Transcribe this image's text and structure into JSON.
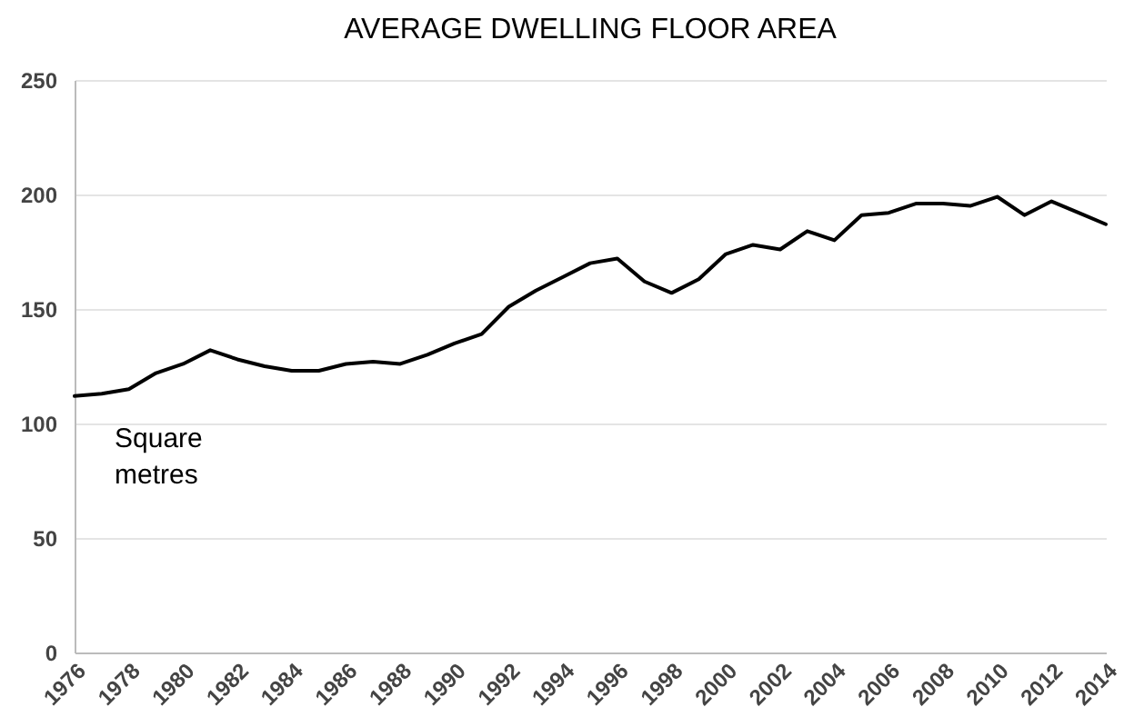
{
  "chart_data": {
    "type": "line",
    "title": "AVERAGE DWELLING FLOOR AREA",
    "ylabel": "Square metres",
    "x": [
      1976,
      1977,
      1978,
      1979,
      1980,
      1981,
      1982,
      1983,
      1984,
      1985,
      1986,
      1987,
      1988,
      1989,
      1990,
      1991,
      1992,
      1993,
      1994,
      1995,
      1996,
      1997,
      1998,
      1999,
      2000,
      2001,
      2002,
      2003,
      2004,
      2005,
      2006,
      2007,
      2008,
      2009,
      2010,
      2011,
      2012,
      2013,
      2014
    ],
    "series": [
      {
        "color": "#000000",
        "values": [
          112,
          113,
          115,
          122,
          126,
          132,
          128,
          125,
          123,
          123,
          126,
          127,
          126,
          130,
          135,
          139,
          151,
          158,
          164,
          170,
          172,
          162,
          157,
          163,
          174,
          178,
          176,
          184,
          180,
          191,
          192,
          196,
          196,
          195,
          199,
          191,
          197,
          192,
          187
        ]
      }
    ],
    "xlim": [
      1976,
      2014
    ],
    "xticks": [
      1976,
      1978,
      1980,
      1982,
      1984,
      1986,
      1988,
      1990,
      1992,
      1994,
      1996,
      1998,
      2000,
      2002,
      2004,
      2006,
      2008,
      2010,
      2012,
      2014
    ],
    "ylim": [
      0,
      250
    ],
    "yticks": [
      0,
      50,
      100,
      150,
      200,
      250
    ],
    "grid": "y",
    "marker": "none",
    "line_style": "solid"
  }
}
